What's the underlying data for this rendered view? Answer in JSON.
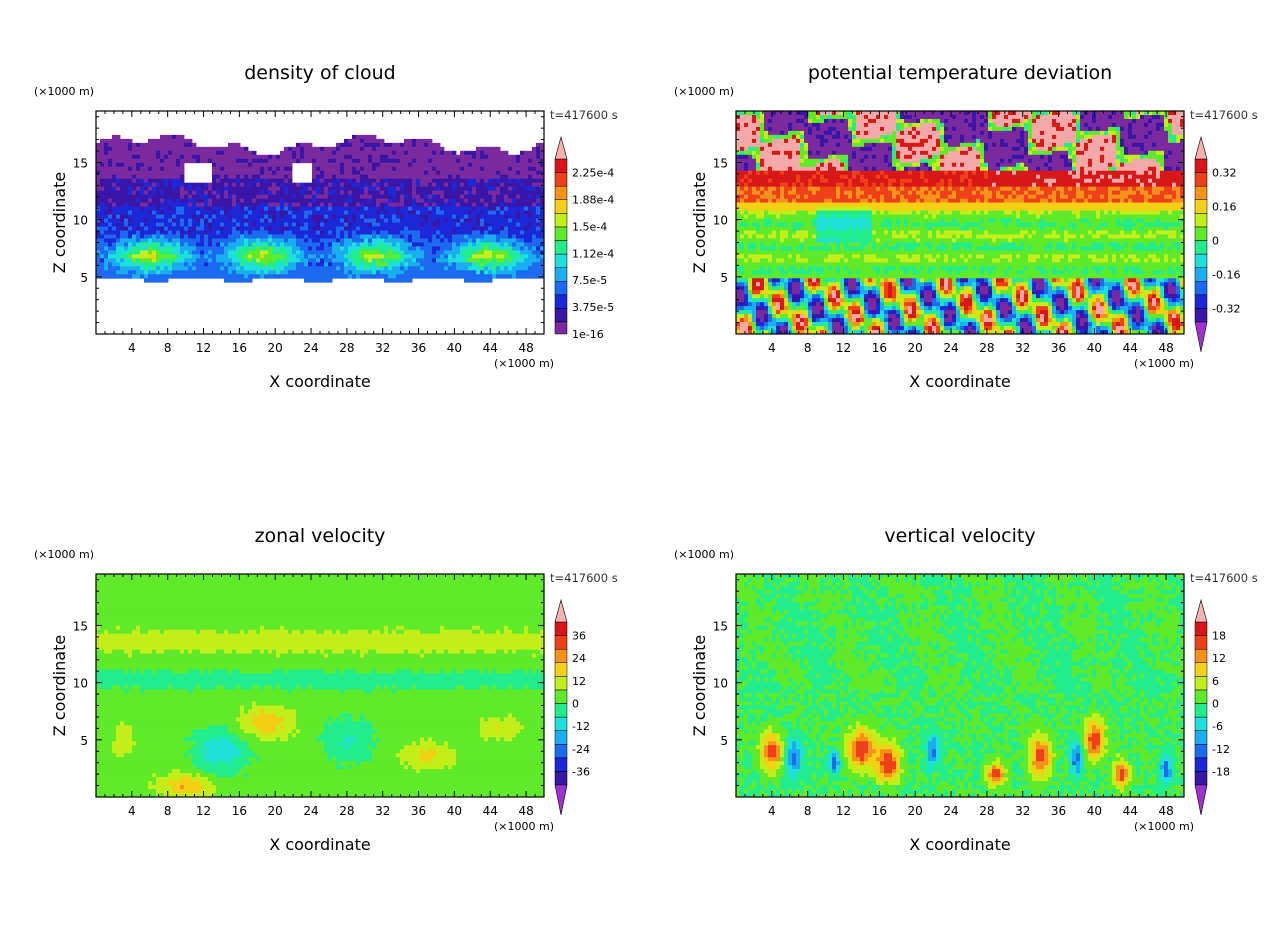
{
  "palette": {
    "levels12": [
      "#7a2a9e",
      "#3a16a8",
      "#1c28d8",
      "#1c6af0",
      "#19aef0",
      "#1fe0d8",
      "#23ec8c",
      "#5fea2a",
      "#c4ee1a",
      "#f4d015",
      "#f5921a",
      "#f0401a",
      "#d81818",
      "#f4a8a8"
    ],
    "overflow_low": "#a030d0",
    "overflow_high": "#f4b2b2"
  },
  "chart_data": [
    {
      "type": "heatmap",
      "title": "density of cloud",
      "xlabel": "X coordinate",
      "ylabel": "Z coordinate",
      "x_unit": "(×1000 m)",
      "y_unit": "(×1000 m)",
      "time_label": "t=417600 s",
      "xlim": [
        0,
        50
      ],
      "ylim": [
        0,
        19.5
      ],
      "xticks": [
        "4",
        "8",
        "12",
        "16",
        "20",
        "24",
        "28",
        "32",
        "36",
        "40",
        "44",
        "48"
      ],
      "yticks": [
        "5",
        "10",
        "15"
      ],
      "colorbar_labels": [
        "1e-16",
        "3.75e-5",
        "7.5e-5",
        "1.12e-4",
        "1.5e-4",
        "1.88e-4",
        "2.25e-4"
      ],
      "colorbar_arrows": "top",
      "field": "cloud"
    },
    {
      "type": "heatmap",
      "title": "potential temperature deviation",
      "xlabel": "X coordinate",
      "ylabel": "Z coordinate",
      "x_unit": "(×1000 m)",
      "y_unit": "(×1000 m)",
      "time_label": "t=417600 s",
      "xlim": [
        0,
        50
      ],
      "ylim": [
        0,
        19.5
      ],
      "xticks": [
        "4",
        "8",
        "12",
        "16",
        "20",
        "24",
        "28",
        "32",
        "36",
        "40",
        "44",
        "48"
      ],
      "yticks": [
        "5",
        "10",
        "15"
      ],
      "colorbar_labels": [
        "-0.32",
        "-0.16",
        "0",
        "0.16",
        "0.32"
      ],
      "colorbar_arrows": "both",
      "field": "theta"
    },
    {
      "type": "heatmap",
      "title": "zonal velocity",
      "xlabel": "X coordinate",
      "ylabel": "Z coordinate",
      "x_unit": "(×1000 m)",
      "y_unit": "(×1000 m)",
      "time_label": "t=417600 s",
      "xlim": [
        0,
        50
      ],
      "ylim": [
        0,
        19.5
      ],
      "xticks": [
        "4",
        "8",
        "12",
        "16",
        "20",
        "24",
        "28",
        "32",
        "36",
        "40",
        "44",
        "48"
      ],
      "yticks": [
        "5",
        "10",
        "15"
      ],
      "colorbar_labels": [
        "-36",
        "-24",
        "-12",
        "0",
        "12",
        "24",
        "36"
      ],
      "colorbar_arrows": "both",
      "field": "u"
    },
    {
      "type": "heatmap",
      "title": "vertical velocity",
      "xlabel": "X coordinate",
      "ylabel": "Z coordinate",
      "x_unit": "(×1000 m)",
      "y_unit": "(×1000 m)",
      "time_label": "t=417600 s",
      "xlim": [
        0,
        50
      ],
      "ylim": [
        0,
        19.5
      ],
      "xticks": [
        "4",
        "8",
        "12",
        "16",
        "20",
        "24",
        "28",
        "32",
        "36",
        "40",
        "44",
        "48"
      ],
      "yticks": [
        "5",
        "10",
        "15"
      ],
      "colorbar_labels": [
        "-18",
        "-12",
        "-6",
        "0",
        "6",
        "12",
        "18"
      ],
      "colorbar_arrows": "both",
      "field": "w"
    }
  ]
}
